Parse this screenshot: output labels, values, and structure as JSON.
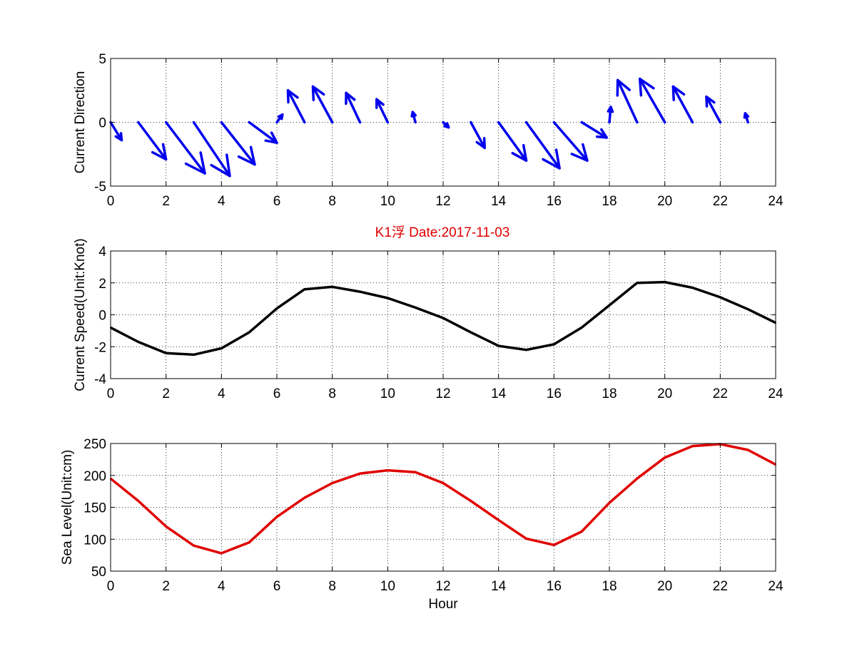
{
  "figure_title": "K1浮    Date:2017-11-03",
  "title_color": "#e00000",
  "chart_data": [
    {
      "type": "quiver",
      "ylabel": "Current Direction",
      "xlabel": "",
      "xlim": [
        0,
        24
      ],
      "ylim": [
        -5,
        5
      ],
      "xticks": [
        0,
        2,
        4,
        6,
        8,
        10,
        12,
        14,
        16,
        18,
        20,
        22,
        24
      ],
      "yticks": [
        -5,
        0,
        5
      ],
      "grid": true,
      "color": "#0000ee",
      "vectors": {
        "x": [
          0,
          1,
          2,
          3,
          4,
          5,
          6,
          7,
          8,
          9,
          10,
          11,
          12,
          13,
          14,
          15,
          16,
          17,
          18,
          19,
          20,
          21,
          22,
          23
        ],
        "u": [
          0.4,
          1.0,
          1.4,
          1.3,
          1.2,
          1.0,
          0.2,
          -0.6,
          -0.7,
          -0.5,
          -0.4,
          -0.1,
          0.2,
          0.5,
          1.0,
          1.2,
          1.2,
          0.9,
          0.05,
          -0.7,
          -0.9,
          -0.7,
          -0.5,
          -0.1
        ],
        "v": [
          -1.4,
          -2.9,
          -4.0,
          -4.2,
          -3.3,
          -1.6,
          0.6,
          2.5,
          2.8,
          2.3,
          1.8,
          0.8,
          -0.4,
          -2.0,
          -3.0,
          -3.6,
          -3.0,
          -1.2,
          1.2,
          3.3,
          3.4,
          2.8,
          2.0,
          0.7
        ]
      }
    },
    {
      "type": "line",
      "ylabel": "Current Speed(Unit:Knot)",
      "xlabel": "",
      "xlim": [
        0,
        24
      ],
      "ylim": [
        -4,
        4
      ],
      "xticks": [
        0,
        2,
        4,
        6,
        8,
        10,
        12,
        14,
        16,
        18,
        20,
        22,
        24
      ],
      "yticks": [
        -4,
        -2,
        0,
        2,
        4
      ],
      "grid": true,
      "series": [
        {
          "color": "#000000",
          "x": [
            0,
            1,
            2,
            3,
            4,
            5,
            6,
            7,
            8,
            9,
            10,
            11,
            12,
            13,
            14,
            15,
            16,
            17,
            18,
            19,
            20,
            21,
            22,
            23,
            24
          ],
          "values": [
            -0.8,
            -1.7,
            -2.4,
            -2.5,
            -2.1,
            -1.1,
            0.4,
            1.6,
            1.75,
            1.45,
            1.05,
            0.45,
            -0.2,
            -1.1,
            -1.95,
            -2.2,
            -1.85,
            -0.8,
            0.6,
            2.0,
            2.05,
            1.7,
            1.1,
            0.35,
            -0.5
          ]
        }
      ]
    },
    {
      "type": "line",
      "ylabel": "Sea Level(Unit:cm)",
      "xlabel": "Hour",
      "xlim": [
        0,
        24
      ],
      "ylim": [
        50,
        250
      ],
      "xticks": [
        0,
        2,
        4,
        6,
        8,
        10,
        12,
        14,
        16,
        18,
        20,
        22,
        24
      ],
      "yticks": [
        50,
        100,
        150,
        200,
        250
      ],
      "grid": true,
      "series": [
        {
          "color": "#e00000",
          "x": [
            0,
            1,
            2,
            3,
            4,
            5,
            6,
            7,
            8,
            9,
            10,
            11,
            12,
            13,
            14,
            15,
            16,
            17,
            18,
            19,
            20,
            21,
            22,
            23,
            24
          ],
          "values": [
            195,
            160,
            120,
            90,
            78,
            95,
            135,
            165,
            188,
            203,
            208,
            205,
            188,
            160,
            130,
            101,
            91,
            112,
            157,
            195,
            228,
            246,
            249,
            240,
            217
          ]
        }
      ]
    }
  ]
}
